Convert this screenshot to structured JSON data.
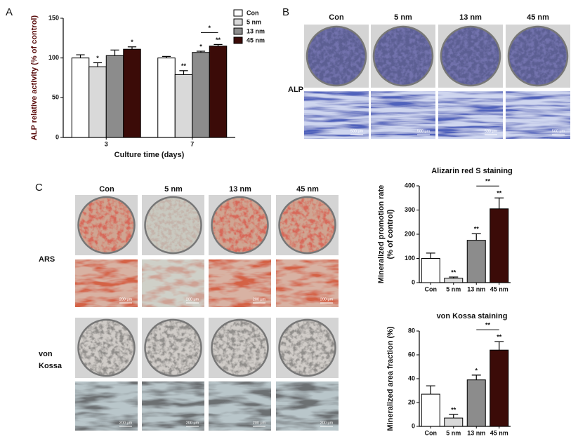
{
  "panel_labels": {
    "a": "A",
    "b": "B",
    "c": "C"
  },
  "panel_b": {
    "columns": [
      "Con",
      "5 nm",
      "13 nm",
      "45 nm"
    ],
    "row_label": "ALP",
    "scale_bar": "500 μm"
  },
  "panel_c": {
    "columns": [
      "Con",
      "5 nm",
      "13 nm",
      "45 nm"
    ],
    "rows": [
      [
        "ARS"
      ],
      [
        "von",
        "Kossa"
      ]
    ],
    "scale_bar": "200 μm"
  },
  "chart_data": [
    {
      "type": "bar",
      "ylabel": "ALP relative activity (% of control)",
      "xlabel": "Culture time (days)",
      "categories": [
        "3",
        "7"
      ],
      "series": [
        {
          "name": "Con",
          "color": "#ffffff",
          "values": [
            100,
            100
          ],
          "errors": [
            4,
            2
          ],
          "significance": [
            null,
            null
          ]
        },
        {
          "name": "5 nm",
          "color": "#d9d9d9",
          "values": [
            89,
            79
          ],
          "errors": [
            5,
            5
          ],
          "significance": [
            "*",
            "**"
          ]
        },
        {
          "name": "13 nm",
          "color": "#8c8c8c",
          "values": [
            103,
            107
          ],
          "errors": [
            7,
            1.5
          ],
          "significance": [
            null,
            "*"
          ]
        },
        {
          "name": "45 nm",
          "color": "#3b0b08",
          "values": [
            111,
            115
          ],
          "errors": [
            3,
            2
          ],
          "significance": [
            "*",
            "**"
          ]
        }
      ],
      "comparison_label": "*",
      "ylim": [
        0,
        150
      ],
      "yticks": [
        0,
        50,
        100,
        150
      ],
      "legend": "right"
    },
    {
      "type": "bar",
      "title": "Alizarin red S staining",
      "ylabel": [
        "Mineralized promotion rate",
        "(% of control)"
      ],
      "categories": [
        "Con",
        "5 nm",
        "13 nm",
        "45 nm"
      ],
      "values": [
        100,
        18,
        175,
        305
      ],
      "errors": [
        22,
        5,
        27,
        45
      ],
      "colors": [
        "#ffffff",
        "#d9d9d9",
        "#8c8c8c",
        "#3b0b08"
      ],
      "significance": [
        null,
        "**",
        "**",
        "**"
      ],
      "comparison_label": "**",
      "ylim": [
        0,
        400
      ],
      "yticks": [
        0,
        100,
        200,
        300,
        400
      ]
    },
    {
      "type": "bar",
      "title": "von Kossa staining",
      "ylabel": [
        "Mineralized area fraction (%)"
      ],
      "categories": [
        "Con",
        "5 nm",
        "13 nm",
        "45 nm"
      ],
      "values": [
        27,
        7,
        39,
        64
      ],
      "errors": [
        7,
        3,
        4,
        7
      ],
      "colors": [
        "#ffffff",
        "#d9d9d9",
        "#8c8c8c",
        "#3b0b08"
      ],
      "significance": [
        null,
        "**",
        "*",
        "**"
      ],
      "comparison_label": "**",
      "ylim": [
        0,
        80
      ],
      "yticks": [
        0,
        20,
        40,
        60,
        80
      ]
    }
  ]
}
